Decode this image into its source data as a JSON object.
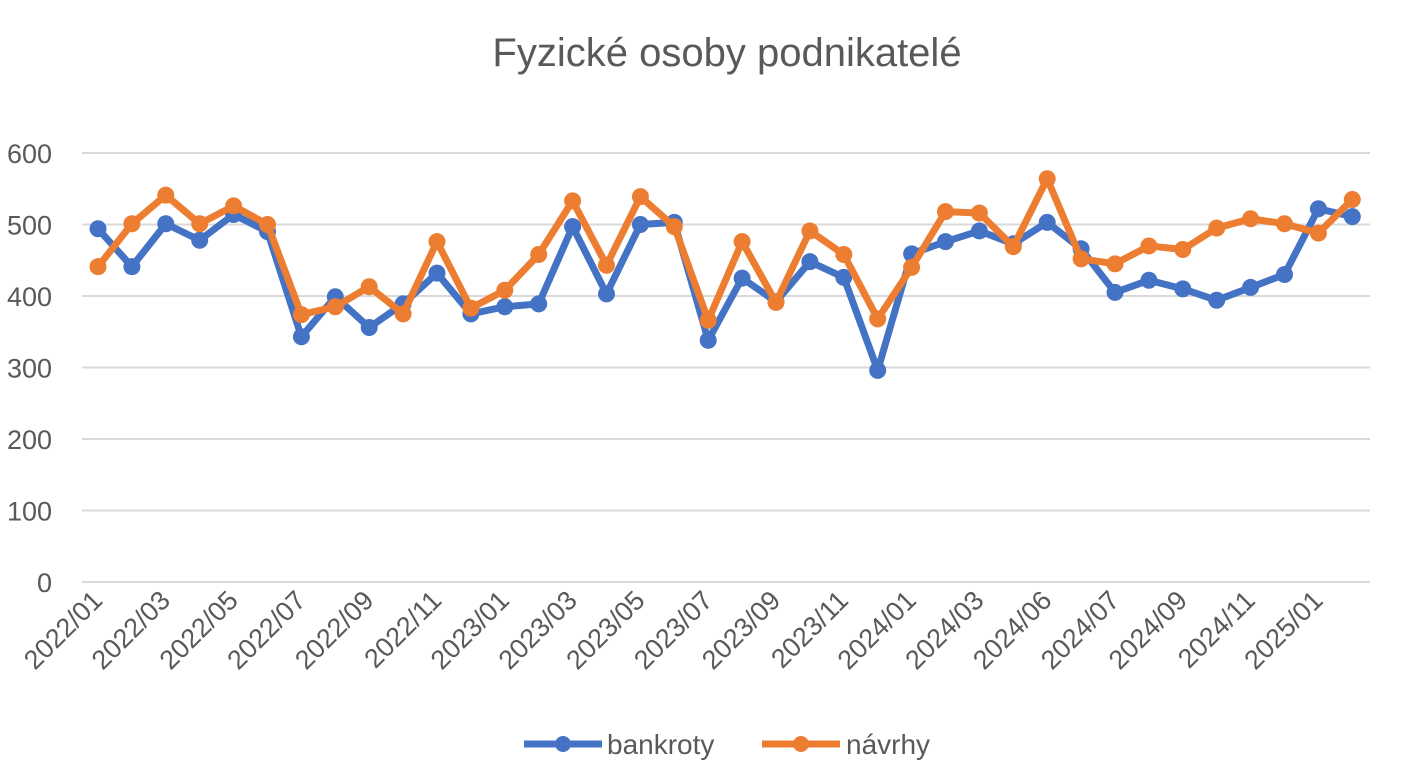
{
  "chart_data": {
    "type": "line",
    "title": "Fyzické osoby podnikatelé",
    "xlabel": "",
    "ylabel": "",
    "ylim": [
      0,
      600
    ],
    "yticks": [
      0,
      100,
      200,
      300,
      400,
      500,
      600
    ],
    "grid": true,
    "legend": "bottom",
    "x": [
      "2022/01",
      "2022/02",
      "2022/03",
      "2022/04",
      "2022/05",
      "2022/06",
      "2022/07",
      "2022/08",
      "2022/09",
      "2022/10",
      "2022/11",
      "2022/12",
      "2023/01",
      "2023/02",
      "2023/03",
      "2023/04",
      "2023/05",
      "2023/06",
      "2023/07",
      "2023/08",
      "2023/09",
      "2023/10",
      "2023/11",
      "2023/12",
      "2024/01",
      "2024/02",
      "2024/03",
      "2024/04",
      "2024/06",
      "2024/06",
      "2024/07",
      "2024/08",
      "2024/09",
      "2024/10",
      "2024/11",
      "2024/12",
      "2025/01",
      "2025/02"
    ],
    "xticks_shown": [
      "2022/01",
      "2022/03",
      "2022/05",
      "2022/07",
      "2022/09",
      "2022/11",
      "2023/01",
      "2023/03",
      "2023/05",
      "2023/07",
      "2023/09",
      "2023/11",
      "2024/01",
      "2024/03",
      "2024/06",
      "2024/07",
      "2024/09",
      "2024/11",
      "2025/01"
    ],
    "series": [
      {
        "name": "bankroty",
        "color": "#4472C4",
        "values": [
          494,
          441,
          501,
          478,
          514,
          490,
          343,
          399,
          356,
          389,
          432,
          375,
          385,
          389,
          497,
          403,
          500,
          503,
          338,
          425,
          392,
          448,
          426,
          296,
          459,
          476,
          491,
          473,
          503,
          466,
          405,
          422,
          410,
          394,
          412,
          430,
          522,
          511
        ]
      },
      {
        "name": "návrhy",
        "color": "#ED7D31",
        "values": [
          441,
          501,
          541,
          501,
          526,
          500,
          374,
          385,
          413,
          375,
          476,
          383,
          408,
          458,
          533,
          443,
          539,
          497,
          366,
          476,
          391,
          491,
          458,
          368,
          440,
          518,
          516,
          469,
          564,
          452,
          445,
          470,
          465,
          495,
          508,
          501,
          488,
          535
        ]
      }
    ]
  }
}
